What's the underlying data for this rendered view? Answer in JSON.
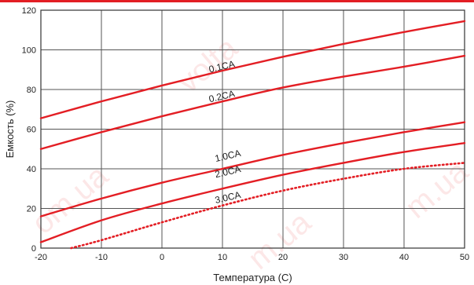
{
  "watermark": [
    "volta",
    "om.ua",
    "m.ua",
    "m.ua"
  ],
  "chart_data": {
    "type": "line",
    "xlabel": "Температура (С)",
    "ylabel": "Емкость (%)",
    "xlim": [
      -20,
      50
    ],
    "ylim": [
      0,
      120
    ],
    "xticks": [
      "-20",
      "-10",
      "0",
      "10",
      "20",
      "30",
      "40",
      "50"
    ],
    "yticks": [
      "0",
      "20",
      "40",
      "60",
      "80",
      "100",
      "120"
    ],
    "grid": true,
    "line_color": "#e31e24",
    "series": [
      {
        "name": "0.1CA",
        "style": "solid",
        "x": [
          -20,
          -10,
          0,
          10,
          20,
          30,
          40,
          50
        ],
        "y": [
          65.5,
          74,
          82,
          89.5,
          96.5,
          103,
          109,
          114.5
        ],
        "label_at": [
          10,
          90
        ]
      },
      {
        "name": "0.2CA",
        "style": "solid",
        "x": [
          -20,
          -10,
          0,
          10,
          20,
          30,
          40,
          50
        ],
        "y": [
          50,
          58.5,
          66.5,
          74,
          81,
          86.5,
          91.5,
          97
        ],
        "label_at": [
          10,
          75
        ]
      },
      {
        "name": "1.0CA",
        "style": "solid",
        "x": [
          -20,
          -10,
          0,
          10,
          20,
          30,
          40,
          50
        ],
        "y": [
          16,
          25,
          33,
          40,
          47,
          53,
          58.5,
          63.5
        ],
        "label_at": [
          11,
          45
        ]
      },
      {
        "name": "2.0CA",
        "style": "solid",
        "x": [
          -20,
          -10,
          0,
          10,
          20,
          30,
          40,
          50
        ],
        "y": [
          3,
          14,
          22.5,
          30,
          37,
          43,
          48.5,
          53
        ],
        "label_at": [
          11,
          37
        ]
      },
      {
        "name": "3.0CA",
        "style": "dotted",
        "x": [
          -15,
          -10,
          0,
          10,
          20,
          30,
          40,
          50
        ],
        "y": [
          0,
          4,
          13,
          21.5,
          29,
          35,
          40,
          43
        ],
        "label_at": [
          11,
          24
        ]
      }
    ]
  }
}
